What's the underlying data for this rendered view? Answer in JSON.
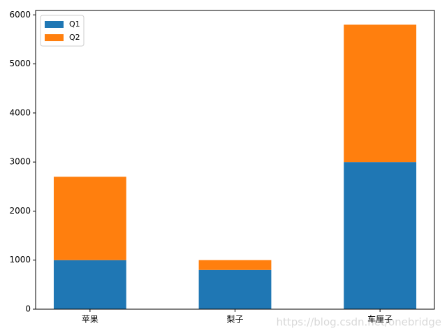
{
  "chart_data": {
    "type": "stacked_bar",
    "categories": [
      "苹果",
      "梨子",
      "车厘子"
    ],
    "series": [
      {
        "name": "Q1",
        "color": "#1f77b4",
        "values": [
          1000,
          800,
          3000
        ]
      },
      {
        "name": "Q2",
        "color": "#ff7f0e",
        "values": [
          1700,
          200,
          2800
        ]
      }
    ],
    "ylim": [
      0,
      6090
    ],
    "yticks": [
      0,
      1000,
      2000,
      3000,
      4000,
      5000,
      6000
    ],
    "legend": "upper left",
    "watermark": "https://blog.csdn.net/onebridge"
  }
}
